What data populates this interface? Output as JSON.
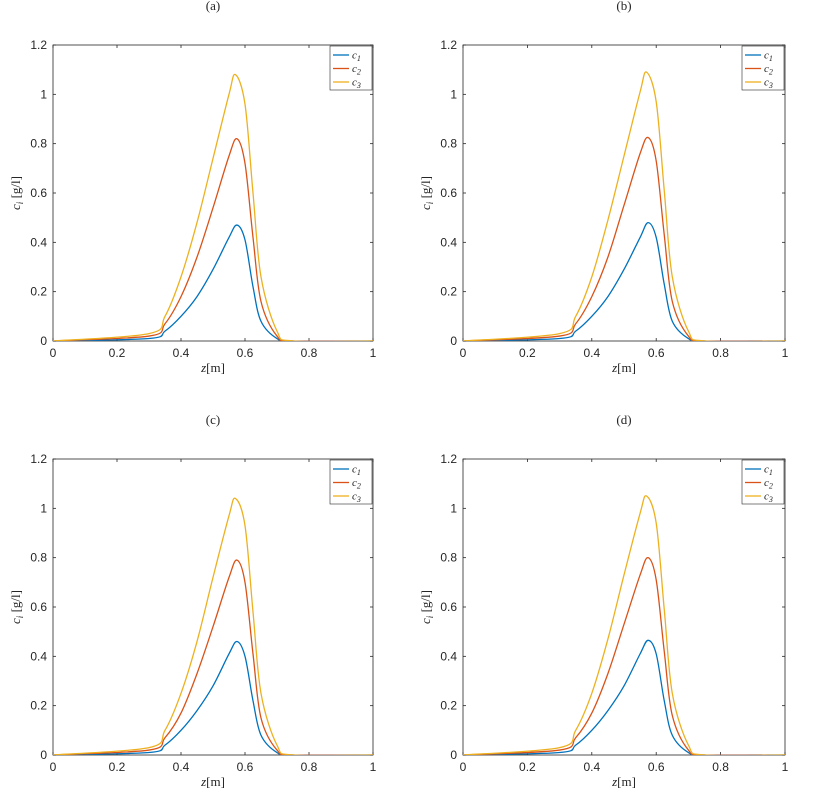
{
  "figure": {
    "xlabel": {
      "main": "z",
      "unit": "[m]"
    },
    "ylabel": {
      "main": "c",
      "sub": "i",
      "unit": " [g/l]"
    }
  },
  "colors": [
    "#0072bd",
    "#d95319",
    "#edb120"
  ],
  "chart_data": [
    {
      "type": "line",
      "title": "(a)",
      "xlim": [
        0,
        1
      ],
      "ylim": [
        0,
        1.2
      ],
      "x_ticks": [
        "0",
        "0.2",
        "0.4",
        "0.6",
        "0.8",
        "1"
      ],
      "y_ticks": [
        "0",
        "0.2",
        "0.4",
        "0.6",
        "0.8",
        "1",
        "1.2"
      ],
      "legend": "top-right",
      "grid": false,
      "series": [
        {
          "name": "c1",
          "label_main": "c",
          "label_sub": "1",
          "x": [
            0,
            0.3,
            0.35,
            0.4,
            0.45,
            0.5,
            0.55,
            0.575,
            0.6,
            0.625,
            0.65,
            0.7,
            0.75,
            1
          ],
          "y": [
            0,
            0.01,
            0.04,
            0.1,
            0.18,
            0.29,
            0.42,
            0.47,
            0.41,
            0.22,
            0.08,
            0.01,
            0,
            0
          ]
        },
        {
          "name": "c2",
          "label_main": "c",
          "label_sub": "2",
          "x": [
            0,
            0.3,
            0.35,
            0.4,
            0.45,
            0.5,
            0.55,
            0.575,
            0.6,
            0.625,
            0.65,
            0.7,
            0.75,
            1
          ],
          "y": [
            0,
            0.02,
            0.07,
            0.18,
            0.34,
            0.54,
            0.75,
            0.82,
            0.72,
            0.42,
            0.16,
            0.02,
            0,
            0
          ]
        },
        {
          "name": "c3",
          "label_main": "c",
          "label_sub": "3",
          "x": [
            0,
            0.3,
            0.35,
            0.4,
            0.45,
            0.5,
            0.55,
            0.57,
            0.6,
            0.625,
            0.65,
            0.7,
            0.75,
            1
          ],
          "y": [
            0,
            0.03,
            0.1,
            0.26,
            0.48,
            0.74,
            1.0,
            1.08,
            0.96,
            0.6,
            0.26,
            0.04,
            0,
            0
          ]
        }
      ]
    },
    {
      "type": "line",
      "title": "(b)",
      "xlim": [
        0,
        1
      ],
      "ylim": [
        0,
        1.2
      ],
      "x_ticks": [
        "0",
        "0.2",
        "0.4",
        "0.6",
        "0.8",
        "1"
      ],
      "y_ticks": [
        "0",
        "0.2",
        "0.4",
        "0.6",
        "0.8",
        "1",
        "1.2"
      ],
      "legend": "top-right",
      "grid": false,
      "series": [
        {
          "name": "c1",
          "label_main": "c",
          "label_sub": "1",
          "x": [
            0,
            0.3,
            0.35,
            0.4,
            0.45,
            0.5,
            0.55,
            0.575,
            0.6,
            0.625,
            0.65,
            0.7,
            0.75,
            1
          ],
          "y": [
            0,
            0.01,
            0.04,
            0.1,
            0.18,
            0.29,
            0.42,
            0.48,
            0.42,
            0.23,
            0.08,
            0.01,
            0,
            0
          ]
        },
        {
          "name": "c2",
          "label_main": "c",
          "label_sub": "2",
          "x": [
            0,
            0.3,
            0.35,
            0.4,
            0.45,
            0.5,
            0.55,
            0.575,
            0.6,
            0.625,
            0.65,
            0.7,
            0.75,
            1
          ],
          "y": [
            0,
            0.02,
            0.07,
            0.18,
            0.34,
            0.55,
            0.76,
            0.825,
            0.73,
            0.43,
            0.16,
            0.02,
            0,
            0
          ]
        },
        {
          "name": "c3",
          "label_main": "c",
          "label_sub": "3",
          "x": [
            0,
            0.3,
            0.35,
            0.4,
            0.45,
            0.5,
            0.55,
            0.57,
            0.6,
            0.625,
            0.65,
            0.7,
            0.75,
            1
          ],
          "y": [
            0,
            0.03,
            0.1,
            0.26,
            0.49,
            0.75,
            1.01,
            1.09,
            0.97,
            0.61,
            0.26,
            0.04,
            0,
            0
          ]
        }
      ]
    },
    {
      "type": "line",
      "title": "(c)",
      "xlim": [
        0,
        1
      ],
      "ylim": [
        0,
        1.2
      ],
      "x_ticks": [
        "0",
        "0.2",
        "0.4",
        "0.6",
        "0.8",
        "1"
      ],
      "y_ticks": [
        "0",
        "0.2",
        "0.4",
        "0.6",
        "0.8",
        "1",
        "1.2"
      ],
      "legend": "top-right",
      "grid": false,
      "series": [
        {
          "name": "c1",
          "label_main": "c",
          "label_sub": "1",
          "x": [
            0,
            0.3,
            0.35,
            0.4,
            0.45,
            0.5,
            0.55,
            0.575,
            0.6,
            0.625,
            0.65,
            0.7,
            0.75,
            1
          ],
          "y": [
            0,
            0.01,
            0.04,
            0.1,
            0.18,
            0.28,
            0.41,
            0.46,
            0.4,
            0.22,
            0.08,
            0.01,
            0,
            0
          ]
        },
        {
          "name": "c2",
          "label_main": "c",
          "label_sub": "2",
          "x": [
            0,
            0.3,
            0.35,
            0.4,
            0.45,
            0.5,
            0.55,
            0.575,
            0.6,
            0.625,
            0.65,
            0.7,
            0.75,
            1
          ],
          "y": [
            0,
            0.02,
            0.07,
            0.17,
            0.33,
            0.52,
            0.72,
            0.79,
            0.7,
            0.41,
            0.15,
            0.02,
            0,
            0
          ]
        },
        {
          "name": "c3",
          "label_main": "c",
          "label_sub": "3",
          "x": [
            0,
            0.3,
            0.35,
            0.4,
            0.45,
            0.5,
            0.55,
            0.57,
            0.6,
            0.625,
            0.65,
            0.7,
            0.75,
            1
          ],
          "y": [
            0,
            0.03,
            0.1,
            0.25,
            0.46,
            0.72,
            0.97,
            1.04,
            0.93,
            0.58,
            0.25,
            0.04,
            0,
            0
          ]
        }
      ]
    },
    {
      "type": "line",
      "title": "(d)",
      "xlim": [
        0,
        1
      ],
      "ylim": [
        0,
        1.2
      ],
      "x_ticks": [
        "0",
        "0.2",
        "0.4",
        "0.6",
        "0.8",
        "1"
      ],
      "y_ticks": [
        "0",
        "0.2",
        "0.4",
        "0.6",
        "0.8",
        "1",
        "1.2"
      ],
      "legend": "top-right",
      "grid": false,
      "series": [
        {
          "name": "c1",
          "label_main": "c",
          "label_sub": "1",
          "x": [
            0,
            0.3,
            0.35,
            0.4,
            0.45,
            0.5,
            0.55,
            0.575,
            0.6,
            0.625,
            0.65,
            0.7,
            0.75,
            1
          ],
          "y": [
            0,
            0.01,
            0.04,
            0.1,
            0.18,
            0.28,
            0.41,
            0.465,
            0.41,
            0.22,
            0.08,
            0.01,
            0,
            0
          ]
        },
        {
          "name": "c2",
          "label_main": "c",
          "label_sub": "2",
          "x": [
            0,
            0.3,
            0.35,
            0.4,
            0.45,
            0.5,
            0.55,
            0.575,
            0.6,
            0.625,
            0.65,
            0.7,
            0.75,
            1
          ],
          "y": [
            0,
            0.02,
            0.07,
            0.17,
            0.33,
            0.53,
            0.73,
            0.8,
            0.71,
            0.42,
            0.16,
            0.02,
            0,
            0
          ]
        },
        {
          "name": "c3",
          "label_main": "c",
          "label_sub": "3",
          "x": [
            0,
            0.3,
            0.35,
            0.4,
            0.45,
            0.5,
            0.55,
            0.57,
            0.6,
            0.625,
            0.65,
            0.7,
            0.75,
            1
          ],
          "y": [
            0,
            0.03,
            0.1,
            0.25,
            0.47,
            0.73,
            0.98,
            1.05,
            0.94,
            0.59,
            0.25,
            0.04,
            0,
            0
          ]
        }
      ]
    }
  ]
}
